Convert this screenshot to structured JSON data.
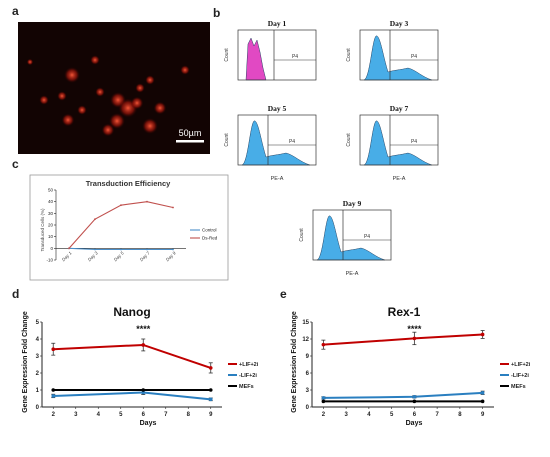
{
  "panel_labels": [
    "a",
    "b",
    "c",
    "d",
    "e"
  ],
  "panel_a": {
    "scale_bar": "50µm"
  },
  "panel_b": {
    "plots": [
      {
        "title": "Day 1",
        "ylabel": "Count",
        "xlabel": "",
        "gate": "P4",
        "color": "#e040c0"
      },
      {
        "title": "Day 3",
        "ylabel": "Count",
        "xlabel": "",
        "gate": "P4",
        "color": "#3fa9e6"
      },
      {
        "title": "Day 5",
        "ylabel": "Count",
        "xlabel": "PE-A",
        "gate": "P4",
        "color": "#3fa9e6"
      },
      {
        "title": "Day 7",
        "ylabel": "Count",
        "xlabel": "PE-A",
        "gate": "P4",
        "color": "#3fa9e6"
      },
      {
        "title": "Day 9",
        "ylabel": "Count",
        "xlabel": "PE-A",
        "gate": "P4",
        "color": "#3fa9e6"
      }
    ]
  },
  "chart_data": [
    {
      "type": "line",
      "panel": "c",
      "title": "Transduction Efficiency",
      "ylabel": "Transduced Cells (%)",
      "xlabel": "",
      "categories": [
        "Day 1",
        "Day 3",
        "Day 5",
        "Day 7",
        "Day 9"
      ],
      "yticks": [
        -10,
        0,
        10,
        20,
        30,
        40,
        50
      ],
      "ylim": [
        -10,
        50
      ],
      "series": [
        {
          "name": "Control",
          "color": "#4a8ec8",
          "values": [
            0,
            -1,
            -1,
            -1,
            -1
          ]
        },
        {
          "name": "Ds-Red",
          "color": "#c0504d",
          "values": [
            0,
            25,
            37,
            40,
            35
          ]
        }
      ],
      "legend": "right"
    },
    {
      "type": "line",
      "panel": "d",
      "title": "Nanog",
      "ylabel": "Gene Expression Fold Change",
      "xlabel": "Days",
      "x": [
        2,
        6,
        9
      ],
      "xticks": [
        2,
        3,
        4,
        5,
        6,
        7,
        8,
        9
      ],
      "yticks": [
        0,
        1,
        2,
        3,
        4,
        5
      ],
      "ylim": [
        0,
        5
      ],
      "xlim": [
        1.5,
        9.5
      ],
      "series": [
        {
          "name": "+LIF+2i",
          "color": "#c00000",
          "values": [
            3.4,
            3.65,
            2.3
          ],
          "errors": [
            0.35,
            0.35,
            0.3
          ]
        },
        {
          "name": "-LIF+2i",
          "color": "#2a7fc0",
          "values": [
            0.65,
            0.85,
            0.45
          ],
          "errors": [
            0.1,
            0.12,
            0.08
          ]
        },
        {
          "name": "MEFs",
          "color": "#000000",
          "values": [
            1.0,
            1.0,
            1.0
          ],
          "errors": [
            0,
            0,
            0
          ]
        }
      ],
      "annotation": "****",
      "legend": "right"
    },
    {
      "type": "line",
      "panel": "e",
      "title": "Rex-1",
      "ylabel": "Gene Expression Fold Change",
      "xlabel": "Days",
      "x": [
        2,
        6,
        9
      ],
      "xticks": [
        2,
        3,
        4,
        5,
        6,
        7,
        8,
        9
      ],
      "yticks": [
        0,
        3,
        6,
        9,
        12,
        15
      ],
      "ylim": [
        0,
        15
      ],
      "xlim": [
        1.5,
        9.5
      ],
      "series": [
        {
          "name": "+LIF+2i",
          "color": "#c00000",
          "values": [
            11.0,
            12.1,
            12.8
          ],
          "errors": [
            0.8,
            1.1,
            0.7
          ]
        },
        {
          "name": "-LIF+2i",
          "color": "#2a7fc0",
          "values": [
            1.6,
            1.8,
            2.5
          ],
          "errors": [
            0.2,
            0.2,
            0.3
          ]
        },
        {
          "name": "MEFs",
          "color": "#000000",
          "values": [
            1.0,
            1.0,
            1.0
          ],
          "errors": [
            0,
            0,
            0
          ]
        }
      ],
      "annotation": "****",
      "legend": "right"
    }
  ]
}
